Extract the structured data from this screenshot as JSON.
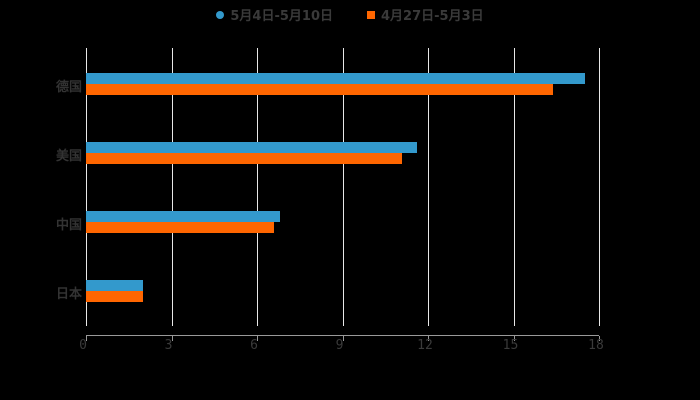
{
  "chart_data": {
    "type": "bar",
    "orientation": "horizontal",
    "title": "",
    "categories": [
      "德国",
      "美国",
      "中国",
      "日本"
    ],
    "series": [
      {
        "name": "5月4日-5月10日",
        "color": "#3399cc",
        "values": [
          17.5,
          11.6,
          6.8,
          2.0
        ]
      },
      {
        "name": "4月27日-5月3日",
        "color": "#ff6600",
        "values": [
          16.4,
          11.1,
          6.6,
          2.0
        ]
      }
    ],
    "xlabel": "",
    "ylabel": "",
    "xlim": [
      0,
      18
    ],
    "xticks": [
      "0",
      "3",
      "6",
      "9",
      "12",
      "15",
      "18"
    ],
    "grid": true,
    "legend_position": "top"
  },
  "legend": [
    {
      "label": "5月4日-5月10日",
      "color": "#3399cc"
    },
    {
      "label": "4月27日-5月3日",
      "color": "#ff6600"
    }
  ]
}
